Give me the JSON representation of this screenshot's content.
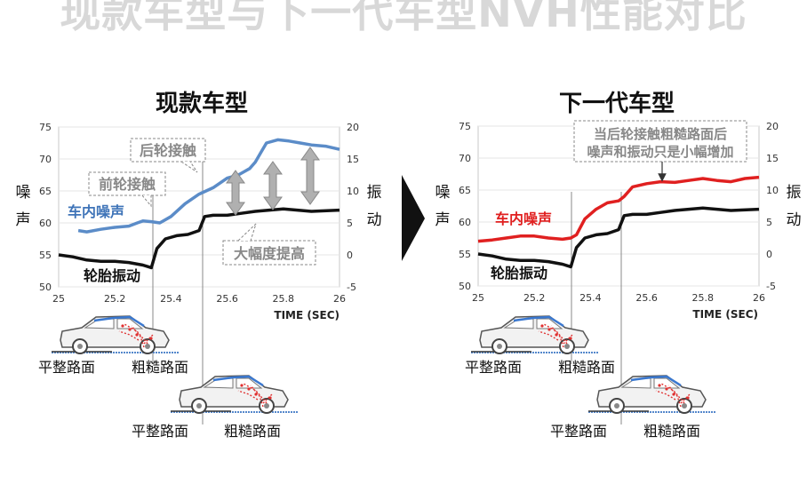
{
  "page_title": "现款车型与下一代车型NVH性能对比",
  "arrow_color": "#111111",
  "chart_data": [
    {
      "type": "line",
      "title": "现款车型",
      "xlabel": "TIME (SEC)",
      "ylabel_left": "噪声",
      "ylabel_right": "振动",
      "xlim": [
        25,
        26
      ],
      "ylim_left": [
        50,
        75
      ],
      "ylim_right": [
        -5,
        20
      ],
      "x_ticks": [
        "25",
        "25.2",
        "25.4",
        "25.6",
        "25.8",
        "26"
      ],
      "y_ticks_left": [
        "50",
        "55",
        "60",
        "65",
        "70",
        "75"
      ],
      "y_ticks_right": [
        "-5",
        "0",
        "5",
        "10",
        "15",
        "20"
      ],
      "grid": true,
      "series": [
        {
          "name": "车内噪声",
          "axis": "left",
          "color": "#5b8cc8",
          "x": [
            25.07,
            25.1,
            25.15,
            25.2,
            25.25,
            25.28,
            25.3,
            25.33,
            25.36,
            25.4,
            25.45,
            25.5,
            25.55,
            25.6,
            25.64,
            25.66,
            25.68,
            25.7,
            25.72,
            25.74,
            25.78,
            25.82,
            25.86,
            25.9,
            25.95,
            26
          ],
          "y": [
            58.8,
            58.6,
            59,
            59.3,
            59.5,
            60,
            60.3,
            60.2,
            60,
            61,
            63,
            64.5,
            65.5,
            67,
            67.5,
            68,
            68.5,
            69.5,
            71,
            72.5,
            73,
            72.8,
            72.5,
            72.2,
            72,
            71.5
          ]
        },
        {
          "name": "轮胎振动",
          "axis": "right",
          "color": "#111111",
          "x": [
            25,
            25.05,
            25.1,
            25.15,
            25.2,
            25.25,
            25.3,
            25.33,
            25.35,
            25.38,
            25.42,
            25.46,
            25.5,
            25.52,
            25.55,
            25.6,
            25.65,
            25.7,
            25.75,
            25.8,
            25.85,
            25.9,
            26
          ],
          "y": [
            0,
            -0.3,
            -0.8,
            -1,
            -1,
            -1.2,
            -1.6,
            -2,
            1,
            2.5,
            3,
            3.2,
            3.8,
            6,
            6.2,
            6.2,
            6.5,
            6.8,
            7,
            7.2,
            7,
            6.8,
            7
          ]
        }
      ],
      "annotations": [
        {
          "text": "后轮接触",
          "x": 25.46
        },
        {
          "text": "前轮接触",
          "x": 25.33
        },
        {
          "text": "大幅度提高"
        }
      ],
      "diagram_labels": [
        "平整路面",
        "粗糙路面",
        "平整路面",
        "粗糙路面"
      ]
    },
    {
      "type": "line",
      "title": "下一代车型",
      "xlabel": "TIME (SEC)",
      "ylabel_left": "噪声",
      "ylabel_right": "振动",
      "xlim": [
        25,
        26
      ],
      "ylim_left": [
        50,
        75
      ],
      "ylim_right": [
        -5,
        20
      ],
      "x_ticks": [
        "25",
        "25.2",
        "25.4",
        "25.6",
        "25.8",
        "26"
      ],
      "y_ticks_left": [
        "50",
        "55",
        "60",
        "65",
        "70",
        "75"
      ],
      "y_ticks_right": [
        "-5",
        "0",
        "5",
        "10",
        "15",
        "20"
      ],
      "grid": true,
      "series": [
        {
          "name": "车内噪声",
          "axis": "left",
          "color": "#e02020",
          "x": [
            25,
            25.05,
            25.1,
            25.15,
            25.2,
            25.25,
            25.3,
            25.33,
            25.35,
            25.38,
            25.42,
            25.46,
            25.5,
            25.52,
            25.55,
            25.6,
            25.65,
            25.7,
            25.75,
            25.8,
            25.85,
            25.9,
            25.95,
            26
          ],
          "y": [
            57,
            57.2,
            57.5,
            57.8,
            57.8,
            57.5,
            57.3,
            57.5,
            58,
            60.5,
            62,
            63,
            63.3,
            64,
            65.5,
            66,
            66.3,
            66.2,
            66.5,
            66.8,
            66.5,
            66.3,
            66.8,
            67
          ]
        },
        {
          "name": "轮胎振动",
          "axis": "right",
          "color": "#111111",
          "x": [
            25,
            25.05,
            25.1,
            25.15,
            25.2,
            25.25,
            25.3,
            25.33,
            25.35,
            25.38,
            25.42,
            25.46,
            25.5,
            25.52,
            25.55,
            25.6,
            25.65,
            25.7,
            25.75,
            25.8,
            25.85,
            25.9,
            26
          ],
          "y": [
            0,
            -0.3,
            -0.8,
            -1,
            -1,
            -1.2,
            -1.6,
            -2,
            1,
            2.5,
            3,
            3.2,
            3.8,
            6,
            6.2,
            6.2,
            6.5,
            6.8,
            7,
            7.2,
            7,
            6.8,
            7
          ]
        }
      ],
      "annotations": [
        {
          "text": "当后轮接触粗糙路面后"
        },
        {
          "text": "噪声和振动只是小幅增加"
        }
      ],
      "diagram_labels": [
        "平整路面",
        "粗糙路面",
        "平整路面",
        "粗糙路面"
      ]
    }
  ]
}
